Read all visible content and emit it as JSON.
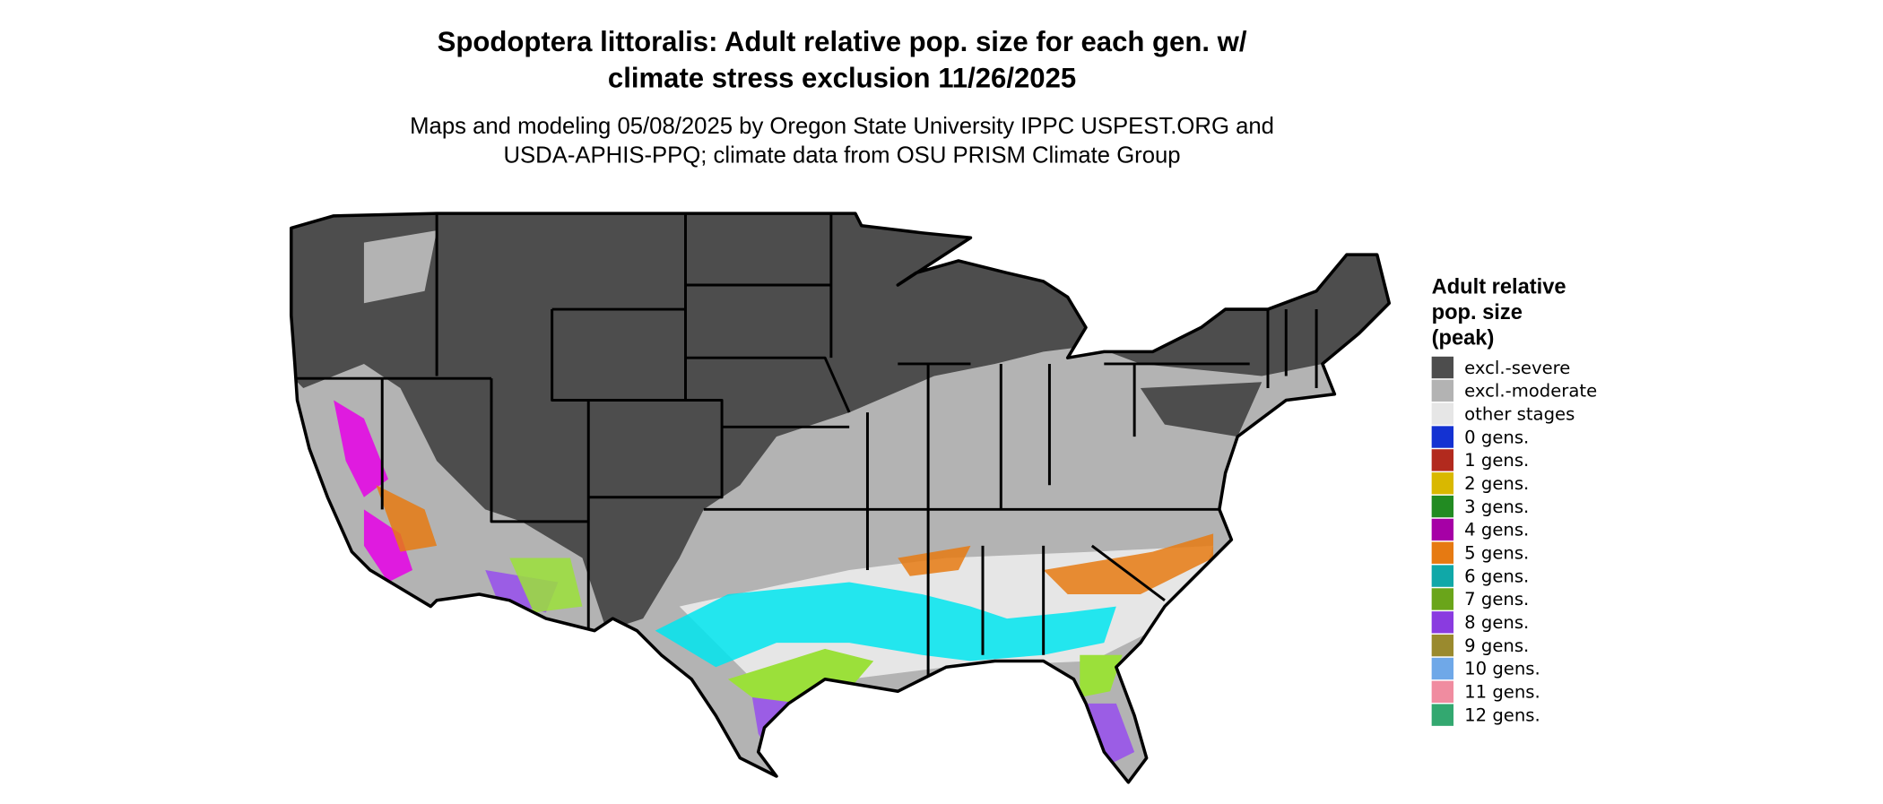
{
  "header": {
    "title": [
      "Spodoptera littoralis: Adult relative pop. size for each gen. w/",
      "climate stress exclusion 11/26/2025"
    ],
    "subtitle": [
      "Maps and modeling 05/08/2025 by Oregon State University IPPC USPEST.ORG and",
      "USDA-APHIS-PPQ; climate data from OSU PRISM Climate Group"
    ]
  },
  "legend": {
    "title": [
      "Adult relative",
      "pop. size",
      "(peak)"
    ],
    "items": [
      {
        "label": "excl.-severe",
        "color": "#4d4d4d"
      },
      {
        "label": "excl.-moderate",
        "color": "#b3b3b3"
      },
      {
        "label": "other stages",
        "color": "#e6e6e6"
      },
      {
        "label": "0 gens.",
        "color": "#1432d2"
      },
      {
        "label": "1 gens.",
        "color": "#b22a1e"
      },
      {
        "label": "2 gens.",
        "color": "#d9b800"
      },
      {
        "label": "3 gens.",
        "color": "#228b22"
      },
      {
        "label": "4 gens.",
        "color": "#a600a6"
      },
      {
        "label": "5 gens.",
        "color": "#e67a12"
      },
      {
        "label": "6 gens.",
        "color": "#10a8a8"
      },
      {
        "label": "7 gens.",
        "color": "#6aa51a"
      },
      {
        "label": "8 gens.",
        "color": "#8a3be0"
      },
      {
        "label": "9 gens.",
        "color": "#9a8a2e"
      },
      {
        "label": "10 gens.",
        "color": "#6fa8e8"
      },
      {
        "label": "11 gens.",
        "color": "#f08ca0"
      },
      {
        "label": "12 gens.",
        "color": "#33a870"
      }
    ]
  }
}
